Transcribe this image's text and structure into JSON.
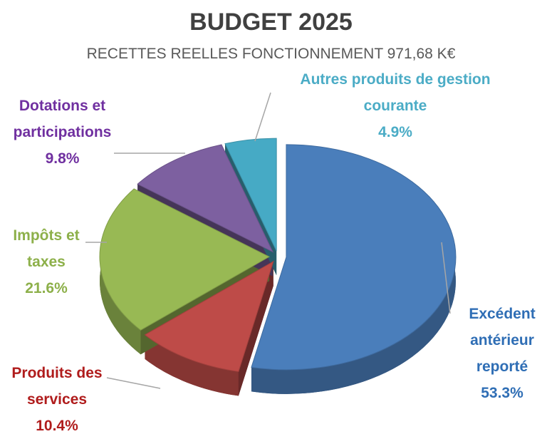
{
  "chart_data": {
    "type": "pie",
    "title": "BUDGET 2025",
    "subtitle": "RECETTES REELLES FONCTIONNEMENT 971,68 K€",
    "categories": [
      "Excédent antérieur reporté",
      "Produits des services",
      "Impôts et taxes",
      "Dotations et participations",
      "Autres produits de gestion courante"
    ],
    "values": [
      53.3,
      10.4,
      21.6,
      9.8,
      4.9
    ],
    "value_labels": [
      "53.3%",
      "10.4%",
      "21.6%",
      "9.8%",
      "4.9%"
    ],
    "colors": [
      "#4a7ebb",
      "#be4b48",
      "#98b954",
      "#7d60a0",
      "#46aac5"
    ],
    "label_colors": [
      "#2f6eb5",
      "#b01c1c",
      "#8db04a",
      "#7030a0",
      "#4bacc6"
    ]
  }
}
